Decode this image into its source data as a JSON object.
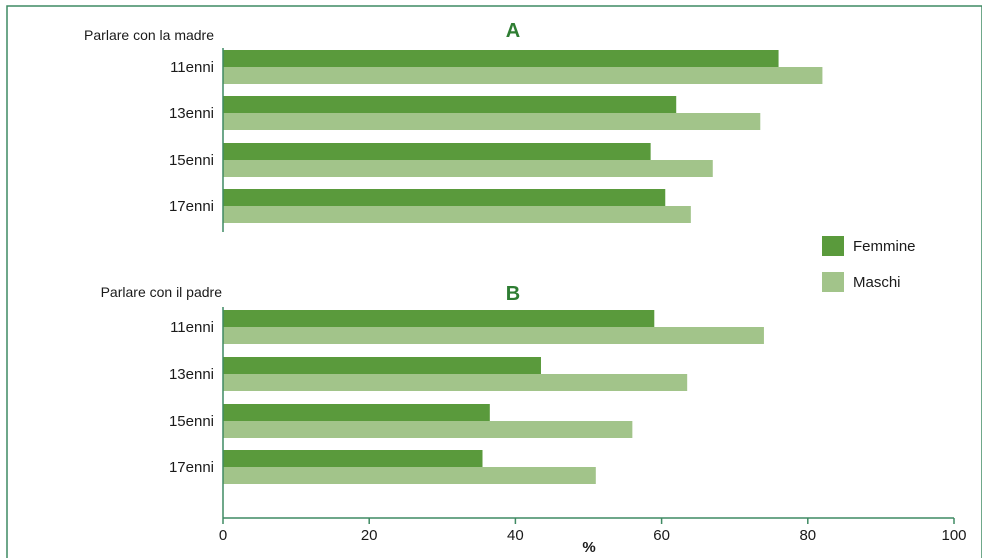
{
  "chart_data": {
    "type": "bar",
    "orientation": "horizontal",
    "xlabel": "%",
    "xlim": [
      0,
      100
    ],
    "xticks": [
      "0",
      "20",
      "40",
      "60",
      "80",
      "100"
    ],
    "grid": false,
    "legend_position": "right",
    "colors": {
      "Femmine": "#5a9a3c",
      "Maschi": "#a2c48a",
      "frame": "#3f8a63",
      "panel_label": "#2e7d32"
    },
    "series_names": [
      "Femmine",
      "Maschi"
    ],
    "groups": [
      {
        "panel": "A",
        "title": "Parlare con la madre",
        "categories": [
          "11enni",
          "13enni",
          "15enni",
          "17enni"
        ],
        "series": [
          {
            "name": "Femmine",
            "values": [
              76,
              62,
              58.5,
              60.5
            ]
          },
          {
            "name": "Maschi",
            "values": [
              82,
              73.5,
              67,
              64
            ]
          }
        ]
      },
      {
        "panel": "B",
        "title": "Parlare con il padre",
        "categories": [
          "11enni",
          "13enni",
          "15enni",
          "17enni"
        ],
        "series": [
          {
            "name": "Femmine",
            "values": [
              59,
              43.5,
              36.5,
              35.5
            ]
          },
          {
            "name": "Maschi",
            "values": [
              74,
              63.5,
              56,
              51
            ]
          }
        ]
      }
    ]
  }
}
